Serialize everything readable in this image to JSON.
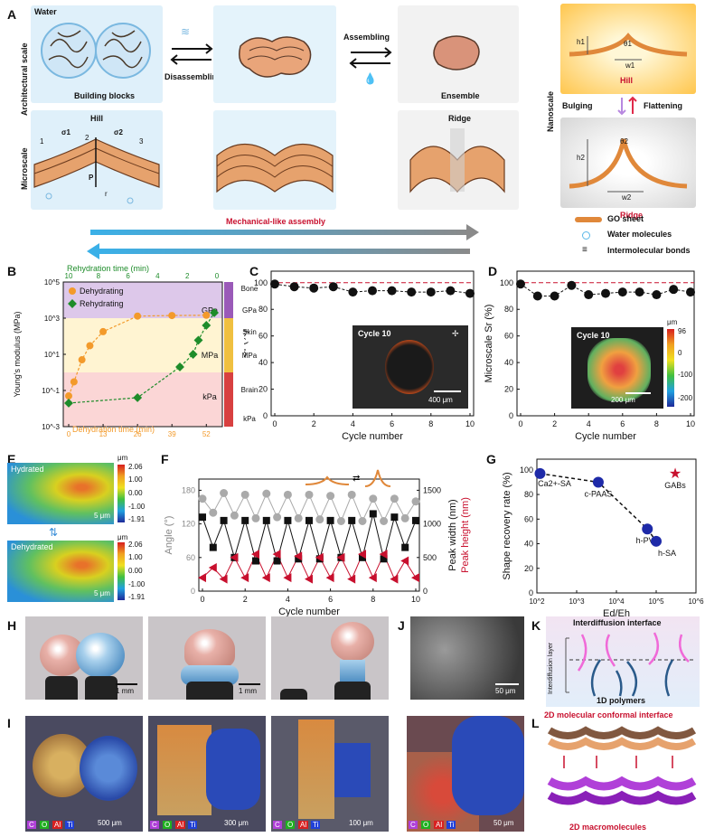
{
  "panelA": {
    "letter": "A",
    "water": "Water",
    "architectural_scale": "Architectural scale",
    "microscale": "Microscale",
    "nanoscale": "Nanoscale",
    "building_blocks": "Building blocks",
    "disassembling": "Disassembling",
    "assembling": "Assembling",
    "ensemble": "Ensemble",
    "hill": "Hill",
    "ridge": "Ridge",
    "hill_red": "Hill",
    "ridge_red": "Ridge",
    "bulging": "Bulging",
    "flattening": "Flattening",
    "mechanical_like": "Mechanical-like assembly",
    "legend": {
      "go_sheet": "GO sheet",
      "water_molecules": "Water molecules",
      "bonds": "Intermolecular bonds"
    },
    "sym": {
      "s1": "σ1",
      "s2": "σ2",
      "P": "P",
      "r": "r",
      "n1": "1",
      "n2": "2",
      "n3": "3",
      "h1": "h1",
      "w1": "w1",
      "t1": "θ1",
      "h2": "h2",
      "w2": "w2",
      "t2": "θ2"
    }
  },
  "panelB": {
    "letter": "B",
    "top_axis_label": "Rehydration time (min)",
    "top_ticks": [
      "10",
      "8",
      "6",
      "4",
      "2",
      "0"
    ],
    "bottom_axis_label": "Dehydration time (min)",
    "bottom_ticks": [
      "0",
      "13",
      "26",
      "39",
      "52"
    ],
    "ylabel": "Young's modulus (MPa)",
    "y_ticks": [
      "10^5",
      "10^3",
      "10^1",
      "10^-1",
      "10^-3"
    ],
    "bands": [
      "GPa",
      "MPa",
      "kPa"
    ],
    "legend": [
      "Dehydrating",
      "Rehydrating"
    ],
    "right_labels": [
      "Bone",
      "GPa",
      "Skin",
      "MPa",
      "Brain",
      "kPa"
    ]
  },
  "panelC": {
    "letter": "C",
    "ylabel": "Sr (%)",
    "xlabel": "Cycle number",
    "inset_title": "Cycle 10",
    "scale": "400 μm",
    "y_ticks": [
      "100",
      "80",
      "60",
      "40",
      "20",
      "0"
    ],
    "x_ticks": [
      "0",
      "2",
      "4",
      "6",
      "8",
      "10"
    ]
  },
  "panelD": {
    "letter": "D",
    "ylabel": "Microscale Sr (%)",
    "xlabel": "Cycle number",
    "inset_title": "Cycle 10",
    "scale": "200 μm",
    "cbar_unit": "μm",
    "cbar_ticks": [
      "96",
      "0",
      "-100",
      "-200"
    ],
    "y_ticks": [
      "100",
      "80",
      "60",
      "40",
      "20",
      "0"
    ],
    "x_ticks": [
      "0",
      "2",
      "4",
      "6",
      "8",
      "10"
    ]
  },
  "panelE": {
    "letter": "E",
    "hydrated": "Hydrated",
    "dehydrated": "Dehydrated",
    "unit": "μm",
    "ticks": [
      "2.06",
      "1.00",
      "0.00",
      "-1.00",
      "-1.91"
    ],
    "scale": "5 μm"
  },
  "panelF": {
    "letter": "F",
    "ylabel_left": "Angle (°)",
    "ylabel_right1": "Peak width (nm)",
    "ylabel_right2": "Peak height (nm)",
    "xlabel": "Cycle number",
    "left_ticks": [
      "180",
      "120",
      "60",
      "0"
    ],
    "right_ticks": [
      "1500",
      "1000",
      "500",
      "0"
    ],
    "x_ticks": [
      "0",
      "2",
      "4",
      "6",
      "8",
      "10"
    ]
  },
  "panelG": {
    "letter": "G",
    "ylabel": "Shape recovery rate (%)",
    "xlabel": "Ed/Eh",
    "y_ticks": [
      "100",
      "80",
      "60",
      "40",
      "20",
      "0"
    ],
    "x_ticks": [
      "10^2",
      "10^3",
      "10^4",
      "10^5",
      "10^6"
    ],
    "labels": [
      "Ca2+-SA",
      "c-PAAS",
      "h-PVA",
      "h-SA",
      "GABs"
    ]
  },
  "panelH": {
    "letter": "H",
    "scales": [
      "1 mm",
      "1 mm",
      "1 mm"
    ]
  },
  "panelI": {
    "letter": "I",
    "scales": [
      "500 μm",
      "300 μm",
      "100 μm",
      "50 μm"
    ],
    "elements": [
      "C",
      "O",
      "Al",
      "Ti"
    ]
  },
  "panelJ": {
    "letter": "J",
    "scale": "50 μm"
  },
  "panelK": {
    "letter": "K",
    "title": "Interdiffusion interface",
    "side": "Interdiffusion layer",
    "bottom": "1D polymers"
  },
  "panelL": {
    "letter": "L",
    "top": "2D molecular conformal interface",
    "bottom": "2D macromolecules"
  },
  "chart_data": [
    {
      "type": "line",
      "panel": "B",
      "xlabel": "Dehydration time (min)",
      "ylabel": "Young's modulus (MPa)",
      "yscale": "log",
      "ylim": [
        0.001,
        100000
      ],
      "series": [
        {
          "name": "Dehydrating",
          "x": [
            0,
            2,
            5,
            8,
            13,
            26,
            39,
            52
          ],
          "y": [
            0.05,
            0.3,
            5,
            30,
            180,
            1300,
            1400,
            1450
          ]
        },
        {
          "name": "Rehydrating",
          "x": [
            0,
            26,
            42,
            47,
            49,
            52,
            55
          ],
          "y": [
            0.02,
            0.04,
            2,
            10,
            60,
            400,
            2000
          ]
        }
      ]
    },
    {
      "type": "scatter",
      "panel": "C",
      "xlabel": "Cycle number",
      "ylabel": "Sr (%)",
      "ylim": [
        0,
        100
      ],
      "x": [
        0,
        1,
        2,
        3,
        4,
        5,
        6,
        7,
        8,
        9,
        10
      ],
      "y": [
        99,
        97,
        96,
        97,
        93,
        94,
        94,
        93,
        93,
        94,
        92
      ]
    },
    {
      "type": "scatter",
      "panel": "D",
      "xlabel": "Cycle number",
      "ylabel": "Microscale Sr (%)",
      "ylim": [
        0,
        100
      ],
      "x": [
        0,
        1,
        2,
        3,
        4,
        5,
        6,
        7,
        8,
        9,
        10
      ],
      "y": [
        99,
        90,
        90,
        98,
        91,
        92,
        93,
        93,
        91,
        95,
        93
      ]
    },
    {
      "type": "line",
      "panel": "F",
      "xlabel": "Cycle number",
      "series": [
        {
          "name": "Angle (°)",
          "x": [
            0,
            0.5,
            1,
            1.5,
            2,
            2.5,
            3,
            3.5,
            4,
            4.5,
            5,
            5.5,
            6,
            6.5,
            7,
            7.5,
            8,
            8.5,
            9,
            9.5,
            10
          ],
          "y": [
            165,
            140,
            175,
            135,
            172,
            130,
            174,
            132,
            172,
            130,
            172,
            128,
            170,
            125,
            172,
            125,
            165,
            125,
            165,
            130,
            160
          ]
        },
        {
          "name": "Peak width (nm)",
          "x": [
            0,
            0.5,
            1,
            1.5,
            2,
            2.5,
            3,
            3.5,
            4,
            4.5,
            5,
            5.5,
            6,
            6.5,
            7,
            7.5,
            8,
            8.5,
            9,
            9.5,
            10
          ],
          "y": [
            1100,
            650,
            1050,
            500,
            1050,
            450,
            1050,
            450,
            1050,
            480,
            1050,
            480,
            1050,
            500,
            1050,
            500,
            1150,
            480,
            1100,
            650,
            1050
          ]
        },
        {
          "name": "Peak height (nm)",
          "x": [
            0,
            0.5,
            1,
            1.5,
            2,
            2.5,
            3,
            3.5,
            4,
            4.5,
            5,
            5.5,
            6,
            6.5,
            7,
            7.5,
            8,
            8.5,
            9,
            9.5,
            10
          ],
          "y": [
            200,
            350,
            180,
            500,
            200,
            550,
            200,
            550,
            200,
            520,
            180,
            500,
            200,
            500,
            180,
            550,
            200,
            550,
            180,
            450,
            200
          ]
        }
      ]
    },
    {
      "type": "scatter",
      "panel": "G",
      "xlabel": "Ed/Eh",
      "ylabel": "Shape recovery rate (%)",
      "xscale": "log",
      "xlim": [
        100,
        1000000
      ],
      "ylim": [
        0,
        100
      ],
      "points": [
        {
          "label": "Ca2+-SA",
          "x": 120,
          "y": 97
        },
        {
          "label": "c-PAAS",
          "x": 3500,
          "y": 90
        },
        {
          "label": "h-PVA",
          "x": 60000,
          "y": 52
        },
        {
          "label": "h-SA",
          "x": 100000,
          "y": 42
        },
        {
          "label": "GABs",
          "x": 300000,
          "y": 97
        }
      ]
    }
  ],
  "colors": {
    "orange": "#f39a2b",
    "green": "#1e8c2a",
    "red": "#c8102e",
    "blue": "#1a57c7",
    "gray": "#9a9a9a"
  }
}
